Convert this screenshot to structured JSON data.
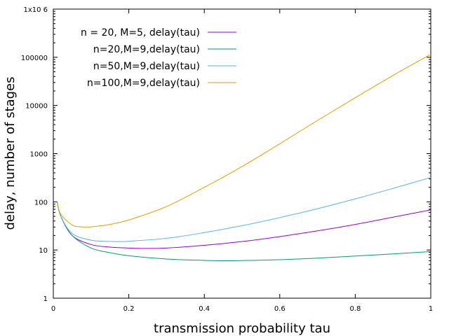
{
  "chart_data": {
    "type": "line",
    "title": "",
    "xlabel": "transmission probability tau",
    "ylabel": "delay, number of stages",
    "xlim": [
      0,
      1
    ],
    "ylim": [
      1,
      1000000
    ],
    "yscale": "log",
    "grid": false,
    "legend_position": "top-left",
    "x_ticks": [
      0,
      0.2,
      0.4,
      0.6,
      0.8,
      1
    ],
    "x_tick_labels": [
      "0",
      "0.2",
      "0.4",
      "0.6",
      "0.8",
      "1"
    ],
    "y_ticks": [
      1,
      10,
      100,
      1000,
      10000,
      100000,
      1000000
    ],
    "y_tick_labels": [
      "1",
      "10",
      "100",
      "1000",
      "10000",
      "100000",
      "1x10 6"
    ],
    "series": [
      {
        "name": "n = 20, M=5, delay(tau)",
        "color": "#9400d3",
        "x": [
          0.01,
          0.02,
          0.05,
          0.1,
          0.15,
          0.2,
          0.25,
          0.3,
          0.4,
          0.5,
          0.6,
          0.7,
          0.8,
          0.9,
          1.0
        ],
        "y": [
          100,
          50,
          20,
          13,
          11.5,
          11,
          10.8,
          11,
          12.5,
          15,
          19,
          25,
          34,
          48,
          68
        ]
      },
      {
        "name": "n=20,M=9,delay(tau)",
        "color": "#009e73",
        "x": [
          0.01,
          0.02,
          0.05,
          0.1,
          0.15,
          0.2,
          0.3,
          0.4,
          0.45,
          0.5,
          0.6,
          0.7,
          0.8,
          0.9,
          1.0
        ],
        "y": [
          100,
          50,
          20,
          11,
          8.8,
          7.6,
          6.5,
          6.1,
          6.0,
          6.05,
          6.3,
          6.8,
          7.5,
          8.3,
          9.3
        ]
      },
      {
        "name": "n=50,M=9,delay(tau)",
        "color": "#56b4e9",
        "x": [
          0.01,
          0.02,
          0.05,
          0.1,
          0.15,
          0.18,
          0.2,
          0.3,
          0.4,
          0.5,
          0.6,
          0.7,
          0.8,
          0.9,
          1.0
        ],
        "y": [
          100,
          50,
          22,
          16,
          15.1,
          15,
          15.2,
          17.5,
          23,
          32,
          47,
          72,
          115,
          190,
          320
        ]
      },
      {
        "name": "n=100,M=9,delay(tau)",
        "color": "#e69f00",
        "x": [
          0.01,
          0.02,
          0.05,
          0.07,
          0.09,
          0.1,
          0.15,
          0.2,
          0.3,
          0.4,
          0.5,
          0.6,
          0.7,
          0.8,
          0.9,
          1.0
        ],
        "y": [
          100,
          55,
          33,
          30.5,
          30,
          30.2,
          34,
          42,
          80,
          200,
          540,
          1600,
          4900,
          14500,
          42000,
          115000
        ]
      }
    ]
  }
}
